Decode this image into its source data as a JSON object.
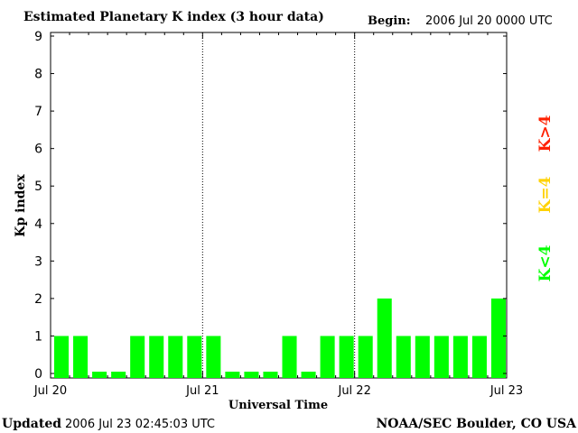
{
  "header": {
    "title": "Estimated Planetary K index (3 hour data)",
    "begin_label": "Begin:",
    "begin_value": "2006 Jul 20 0000 UTC"
  },
  "footer": {
    "updated_label": "Updated",
    "updated_value": "2006 Jul 23 02:45:03 UTC",
    "source": "NOAA/SEC Boulder, CO USA"
  },
  "legend": {
    "items": [
      {
        "label": "K>4",
        "color": "#ff2000"
      },
      {
        "label": "K=4",
        "color": "#ffd200"
      },
      {
        "label": "K<4",
        "color": "#00ff00"
      }
    ]
  },
  "chart_data": {
    "type": "bar",
    "title": "Estimated Planetary K index (3 hour data)",
    "xlabel": "Universal Time",
    "ylabel": "Kp index",
    "ylim": [
      0,
      9
    ],
    "yticks": [
      0,
      1,
      2,
      3,
      4,
      5,
      6,
      7,
      8,
      9
    ],
    "xticks": [
      "Jul 20",
      "Jul 21",
      "Jul 22",
      "Jul 23"
    ],
    "bars_per_day": 8,
    "values": [
      1,
      1,
      0,
      0,
      1,
      1,
      1,
      1,
      1,
      0,
      0,
      0,
      1,
      0,
      1,
      1,
      1,
      2,
      1,
      1,
      1,
      1,
      1,
      2
    ],
    "bar_color": "#00ff00",
    "day_separators": [
      "Jul 21",
      "Jul 22"
    ],
    "grid": false
  }
}
